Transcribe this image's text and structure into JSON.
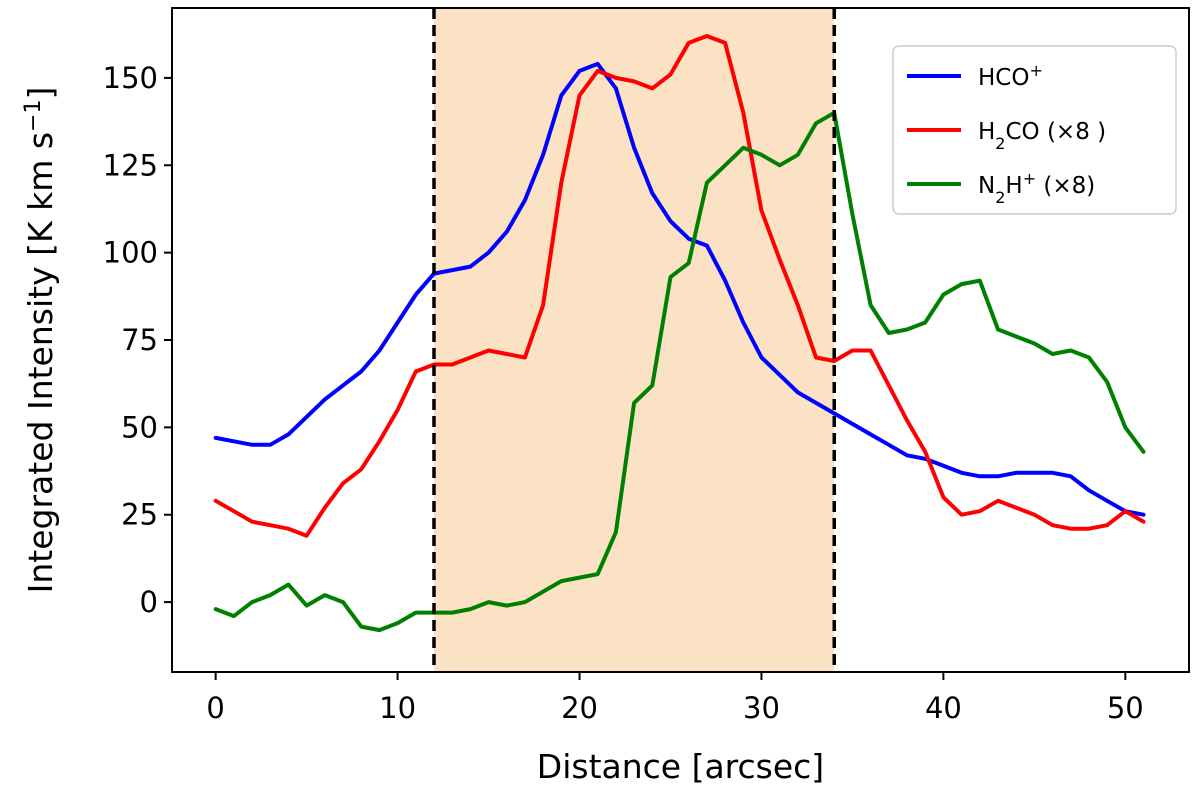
{
  "chart_data": {
    "type": "line",
    "xlabel": "Distance [arcsec]",
    "ylabel": "Integrated Intensity [K km s",
    "ylabel_sup": "−1",
    "ylabel_end": "]",
    "xlim": [
      -2.4,
      53.5
    ],
    "ylim": [
      -20,
      170
    ],
    "xticks": [
      0,
      10,
      20,
      30,
      40,
      50
    ],
    "yticks": [
      0,
      25,
      50,
      75,
      100,
      125,
      150
    ],
    "grid": false,
    "legend_position": "top-right",
    "shaded_region": {
      "x0": 12,
      "x1": 34,
      "color": "#fbe2c4"
    },
    "vlines": [
      12,
      34
    ],
    "series": [
      {
        "name": "HCO⁺",
        "legend_parts": [
          [
            "HCO",
            ""
          ],
          [
            "+",
            "sup"
          ]
        ],
        "color": "#0000ff",
        "x": [
          0,
          1,
          2,
          3,
          4,
          5,
          6,
          7,
          8,
          9,
          10,
          11,
          12,
          13,
          14,
          15,
          16,
          17,
          18,
          19,
          20,
          21,
          22,
          23,
          24,
          25,
          26,
          27,
          28,
          29,
          30,
          31,
          32,
          33,
          34,
          35,
          36,
          37,
          38,
          39,
          40,
          41,
          42,
          43,
          44,
          45,
          46,
          47,
          48,
          49,
          50,
          51
        ],
        "y": [
          47,
          46,
          45,
          45,
          48,
          53,
          58,
          62,
          66,
          72,
          80,
          88,
          94,
          95,
          96,
          100,
          106,
          115,
          128,
          145,
          152,
          154,
          147,
          130,
          117,
          109,
          104,
          102,
          92,
          80,
          70,
          65,
          60,
          57,
          54,
          51,
          48,
          45,
          42,
          41,
          39,
          37,
          36,
          36,
          37,
          37,
          37,
          36,
          32,
          29,
          26,
          25
        ]
      },
      {
        "name": "H₂CO (×8 )",
        "legend_parts": [
          [
            "H",
            ""
          ],
          [
            "2",
            "sub"
          ],
          [
            "CO (×8 )",
            ""
          ]
        ],
        "color": "#ff0000",
        "x": [
          0,
          1,
          2,
          3,
          4,
          5,
          6,
          7,
          8,
          9,
          10,
          11,
          12,
          13,
          14,
          15,
          16,
          17,
          18,
          19,
          20,
          21,
          22,
          23,
          24,
          25,
          26,
          27,
          28,
          29,
          30,
          31,
          32,
          33,
          34,
          35,
          36,
          37,
          38,
          39,
          40,
          41,
          42,
          43,
          44,
          45,
          46,
          47,
          48,
          49,
          50,
          51
        ],
        "y": [
          29,
          26,
          23,
          22,
          21,
          19,
          27,
          34,
          38,
          46,
          55,
          66,
          68,
          68,
          70,
          72,
          71,
          70,
          85,
          120,
          145,
          152,
          150,
          149,
          147,
          151,
          160,
          162,
          160,
          140,
          112,
          98,
          85,
          70,
          69,
          72,
          72,
          62,
          52,
          43,
          30,
          25,
          26,
          29,
          27,
          25,
          22,
          21,
          21,
          22,
          26,
          23
        ]
      },
      {
        "name": "N₂H⁺ (×8)",
        "legend_parts": [
          [
            "N",
            ""
          ],
          [
            "2",
            "sub"
          ],
          [
            "H",
            ""
          ],
          [
            "+",
            "sup"
          ],
          [
            " (×8)",
            ""
          ]
        ],
        "color": "#008000",
        "x": [
          0,
          1,
          2,
          3,
          4,
          5,
          6,
          7,
          8,
          9,
          10,
          11,
          12,
          13,
          14,
          15,
          16,
          17,
          18,
          19,
          20,
          21,
          22,
          23,
          24,
          25,
          26,
          27,
          28,
          29,
          30,
          31,
          32,
          33,
          34,
          35,
          36,
          37,
          38,
          39,
          40,
          41,
          42,
          43,
          44,
          45,
          46,
          47,
          48,
          49,
          50,
          51
        ],
        "y": [
          -2,
          -4,
          0,
          2,
          5,
          -1,
          2,
          0,
          -7,
          -8,
          -6,
          -3,
          -3,
          -3,
          -2,
          0,
          -1,
          0,
          3,
          6,
          7,
          8,
          20,
          57,
          62,
          93,
          97,
          120,
          125,
          130,
          128,
          125,
          128,
          137,
          140,
          111,
          85,
          77,
          78,
          80,
          88,
          91,
          92,
          78,
          76,
          74,
          71,
          72,
          70,
          63,
          50,
          43
        ]
      }
    ]
  }
}
